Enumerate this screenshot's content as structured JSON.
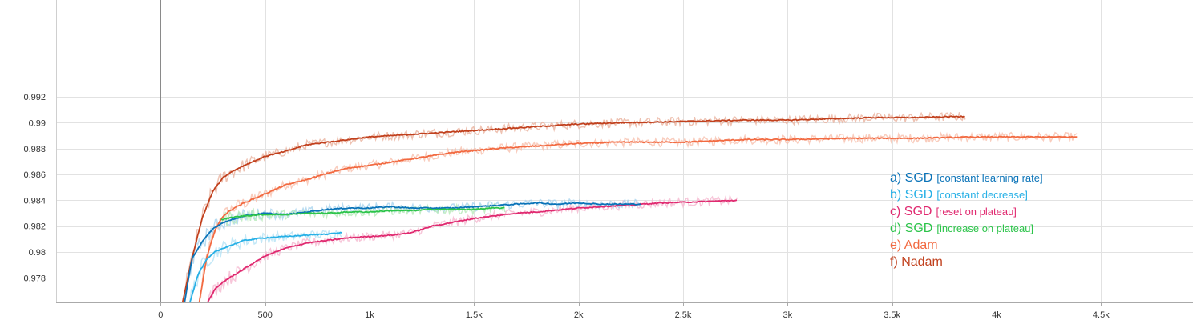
{
  "chart_data": {
    "type": "line",
    "title": "",
    "xlabel": "",
    "ylabel": "",
    "xlim": [
      -500,
      4940
    ],
    "ylim": [
      0.9761,
      0.9995
    ],
    "x_ticks": [
      0,
      500,
      1000,
      1500,
      2000,
      2500,
      3000,
      3500,
      4000,
      4500
    ],
    "x_tick_labels": [
      "0",
      "500",
      "1k",
      "1.5k",
      "2k",
      "2.5k",
      "3k",
      "3.5k",
      "4k",
      "4.5k"
    ],
    "y_ticks": [
      0.978,
      0.98,
      0.982,
      0.984,
      0.986,
      0.988,
      0.99,
      0.992
    ],
    "y_tick_labels": [
      "0.978",
      "0.98",
      "0.982",
      "0.984",
      "0.986",
      "0.988",
      "0.99",
      "0.992"
    ],
    "grid": true,
    "legend_position": "right",
    "series": [
      {
        "key": "f",
        "name": "Nadam",
        "legend_prefix": "f) ",
        "legend_main": "Nadam",
        "legend_sub": "",
        "color": "#c1401d",
        "light_color": "#eab39f",
        "x": [
          105,
          150,
          200,
          250,
          300,
          350,
          400,
          500,
          600,
          700,
          800,
          900,
          1000,
          1200,
          1400,
          1600,
          1800,
          2000,
          2200,
          2500,
          2800,
          3000,
          3200,
          3400,
          3600,
          3850
        ],
        "y": [
          0.9761,
          0.9795,
          0.9827,
          0.9847,
          0.9858,
          0.9863,
          0.9867,
          0.9874,
          0.9878,
          0.9883,
          0.9885,
          0.9887,
          0.9889,
          0.9891,
          0.9893,
          0.9895,
          0.9897,
          0.9899,
          0.99,
          0.9901,
          0.9902,
          0.9902,
          0.9903,
          0.9904,
          0.9904,
          0.9905
        ]
      },
      {
        "key": "e",
        "name": "Adam",
        "legend_prefix": "e) ",
        "legend_main": "Adam",
        "legend_sub": "",
        "color": "#f26a41",
        "light_color": "#f8c1ae",
        "x": [
          185,
          220,
          260,
          300,
          350,
          400,
          500,
          600,
          700,
          800,
          900,
          1000,
          1200,
          1400,
          1600,
          1800,
          2000,
          2200,
          2500,
          2800,
          3000,
          3300,
          3600,
          3900,
          4100,
          4300,
          4390
        ],
        "y": [
          0.9761,
          0.9795,
          0.9817,
          0.9828,
          0.9834,
          0.9838,
          0.9845,
          0.9852,
          0.9856,
          0.9861,
          0.9865,
          0.9867,
          0.9872,
          0.9877,
          0.988,
          0.9882,
          0.9884,
          0.9885,
          0.9885,
          0.9887,
          0.9887,
          0.9888,
          0.9888,
          0.9889,
          0.9889,
          0.9889,
          0.9889
        ]
      },
      {
        "key": "a",
        "name": "SGD [constant learning rate]",
        "legend_prefix": "a) ",
        "legend_main": "SGD",
        "legend_sub": "[constant learning rate]",
        "color": "#0a73b8",
        "light_color": "#a7d3ee",
        "x": [
          115,
          150,
          200,
          250,
          300,
          400,
          500,
          600,
          700,
          800,
          900,
          1000,
          1100,
          1200,
          1300,
          1400,
          1500,
          1600,
          1700,
          1800,
          1900,
          2000,
          2100,
          2200,
          2300
        ],
        "y": [
          0.9761,
          0.9795,
          0.9808,
          0.9818,
          0.9823,
          0.9828,
          0.983,
          0.9829,
          0.9831,
          0.9833,
          0.9834,
          0.9834,
          0.9835,
          0.9834,
          0.9834,
          0.9834,
          0.9835,
          0.9836,
          0.9837,
          0.9838,
          0.9837,
          0.9838,
          0.9837,
          0.9837,
          0.9837
        ]
      },
      {
        "key": "b",
        "name": "SGD [constant decrease]",
        "legend_prefix": "b) ",
        "legend_main": "SGD",
        "legend_sub": "[constant decrease]",
        "color": "#27b0e6",
        "light_color": "#b4e2f5",
        "x": [
          140,
          180,
          220,
          260,
          300,
          350,
          400,
          500,
          600,
          700,
          800,
          870
        ],
        "y": [
          0.9761,
          0.9783,
          0.9794,
          0.98,
          0.9803,
          0.9806,
          0.9809,
          0.9811,
          0.9812,
          0.9813,
          0.9814,
          0.9815
        ]
      },
      {
        "key": "c",
        "name": "SGD [reset on plateau]",
        "legend_prefix": "c) ",
        "legend_main": "SGD",
        "legend_sub": "[reset on plateau]",
        "color": "#e02a70",
        "light_color": "#f5b8d0",
        "x": [
          225,
          260,
          300,
          400,
          500,
          600,
          700,
          800,
          900,
          1000,
          1100,
          1200,
          1300,
          1400,
          1500,
          1600,
          1700,
          1800,
          2000,
          2200,
          2400,
          2600,
          2760
        ],
        "y": [
          0.9761,
          0.9771,
          0.9777,
          0.9787,
          0.9797,
          0.9803,
          0.9807,
          0.9809,
          0.9811,
          0.9812,
          0.9813,
          0.9815,
          0.982,
          0.9823,
          0.9826,
          0.9828,
          0.983,
          0.9831,
          0.9834,
          0.9836,
          0.9838,
          0.9839,
          0.984
        ]
      },
      {
        "key": "d",
        "name": "SGD [increase on plateau]",
        "legend_prefix": "d) ",
        "legend_main": "SGD",
        "legend_sub": "[increase on plateau]",
        "color": "#2cc44a",
        "light_color": "#b6eab9",
        "x": [
          290,
          350,
          400,
          500,
          600,
          700,
          800,
          900,
          1000,
          1100,
          1200,
          1300,
          1400,
          1500,
          1600,
          1650
        ],
        "y": [
          0.9825,
          0.9827,
          0.9828,
          0.9829,
          0.9829,
          0.983,
          0.983,
          0.9831,
          0.9831,
          0.9832,
          0.9832,
          0.9833,
          0.9833,
          0.9833,
          0.9834,
          0.9834
        ]
      }
    ]
  }
}
